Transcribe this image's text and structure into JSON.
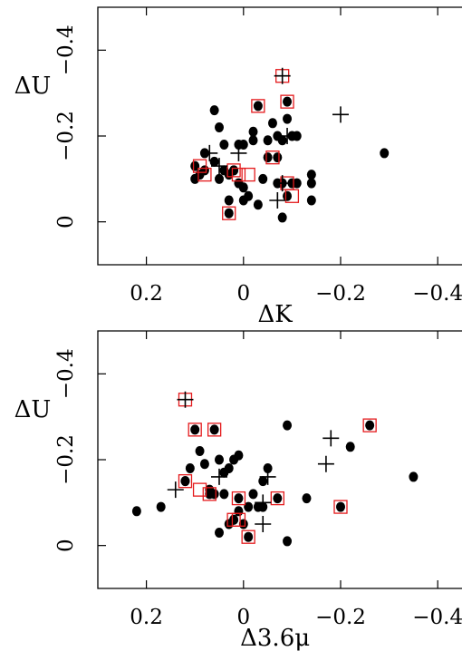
{
  "colors": {
    "point": "#000000",
    "highlight": "#e41a1c",
    "axis": "#000000"
  },
  "chart_data": [
    {
      "type": "scatter",
      "xlabel": "ΔK",
      "ylabel": "ΔU",
      "xlim": [
        0.3,
        -0.45
      ],
      "ylim": [
        0.1,
        -0.5
      ],
      "xticks": [
        0.2,
        0,
        -0.2,
        -0.4
      ],
      "xtick_labels": [
        "0.2",
        "0",
        "−0.2",
        "−0.4"
      ],
      "yticks": [
        0,
        -0.2,
        -0.4
      ],
      "ytick_labels": [
        "0",
        "−0.2",
        "−0.4"
      ],
      "series": [
        {
          "marker": "dot",
          "points": [
            [
              -0.29,
              -0.16
            ],
            [
              -0.14,
              -0.11
            ],
            [
              -0.14,
              -0.09
            ],
            [
              -0.14,
              -0.05
            ],
            [
              -0.11,
              -0.09
            ],
            [
              -0.11,
              -0.2
            ],
            [
              -0.1,
              -0.2
            ],
            [
              -0.1,
              -0.09
            ],
            [
              -0.09,
              -0.24
            ],
            [
              -0.09,
              -0.06
            ],
            [
              -0.08,
              -0.19
            ],
            [
              -0.08,
              -0.09
            ],
            [
              -0.08,
              -0.01
            ],
            [
              -0.07,
              -0.15
            ],
            [
              -0.07,
              -0.09
            ],
            [
              -0.07,
              -0.2
            ],
            [
              -0.06,
              -0.23
            ],
            [
              -0.05,
              -0.19
            ],
            [
              -0.05,
              -0.15
            ],
            [
              -0.04,
              -0.1
            ],
            [
              -0.03,
              -0.04
            ],
            [
              -0.02,
              -0.21
            ],
            [
              -0.02,
              -0.19
            ],
            [
              -0.01,
              -0.06
            ],
            [
              0,
              -0.08
            ],
            [
              0,
              -0.05
            ],
            [
              0,
              -0.18
            ],
            [
              0.01,
              -0.18
            ],
            [
              0.01,
              -0.09
            ],
            [
              0.02,
              -0.12
            ],
            [
              0.02,
              -0.12
            ],
            [
              0.03,
              -0.11
            ],
            [
              0.03,
              -0.05
            ],
            [
              0.04,
              -0.18
            ],
            [
              0.05,
              -0.22
            ],
            [
              0.05,
              -0.1
            ],
            [
              0.06,
              -0.14
            ],
            [
              0.08,
              -0.16
            ],
            [
              0.08,
              -0.12
            ],
            [
              0.09,
              -0.11
            ],
            [
              0.03,
              -0.02
            ],
            [
              0.06,
              -0.26
            ],
            [
              0.1,
              -0.13
            ],
            [
              0.1,
              -0.1
            ],
            [
              -0.03,
              -0.27
            ],
            [
              -0.09,
              -0.28
            ],
            [
              0.04,
              -0.12
            ]
          ]
        },
        {
          "marker": "boxed-dot",
          "points": [
            [
              -0.09,
              -0.28
            ],
            [
              -0.03,
              -0.27
            ],
            [
              -0.06,
              -0.15
            ],
            [
              -0.09,
              -0.09
            ],
            [
              -0.1,
              -0.06
            ],
            [
              0.01,
              -0.11
            ],
            [
              -0.01,
              -0.11
            ],
            [
              0.02,
              -0.12
            ],
            [
              0.09,
              -0.13
            ],
            [
              0.08,
              -0.11
            ],
            [
              0.03,
              -0.02
            ]
          ]
        },
        {
          "marker": "boxed-plus",
          "points": [
            [
              -0.08,
              -0.34
            ]
          ]
        },
        {
          "marker": "plus",
          "points": [
            [
              -0.2,
              -0.25
            ],
            [
              -0.09,
              -0.2
            ],
            [
              -0.08,
              -0.09
            ],
            [
              -0.07,
              -0.05
            ],
            [
              0.07,
              -0.16
            ],
            [
              0.05,
              -0.13
            ],
            [
              0.01,
              -0.16
            ]
          ]
        }
      ]
    },
    {
      "type": "scatter",
      "xlabel": "Δ3.6μ",
      "ylabel": "ΔU",
      "xlim": [
        0.3,
        -0.45
      ],
      "ylim": [
        0.1,
        -0.5
      ],
      "xticks": [
        0.2,
        0,
        -0.2,
        -0.4
      ],
      "xtick_labels": [
        "0.2",
        "0",
        "−0.2",
        "−0.4"
      ],
      "yticks": [
        0,
        -0.2,
        -0.4
      ],
      "ytick_labels": [
        "0",
        "−0.2",
        "−0.4"
      ],
      "series": [
        {
          "marker": "dot",
          "points": [
            [
              -0.35,
              -0.16
            ],
            [
              -0.22,
              -0.23
            ],
            [
              -0.13,
              -0.11
            ],
            [
              -0.09,
              -0.01
            ],
            [
              -0.09,
              -0.28
            ],
            [
              -0.05,
              -0.18
            ],
            [
              -0.04,
              -0.15
            ],
            [
              -0.04,
              -0.09
            ],
            [
              -0.03,
              -0.09
            ],
            [
              -0.02,
              -0.12
            ],
            [
              -0.01,
              -0.09
            ],
            [
              0,
              -0.05
            ],
            [
              0.01,
              -0.21
            ],
            [
              0.01,
              -0.08
            ],
            [
              0.02,
              -0.2
            ],
            [
              0.02,
              -0.06
            ],
            [
              0.03,
              -0.18
            ],
            [
              0.03,
              -0.05
            ],
            [
              0.04,
              -0.12
            ],
            [
              0.04,
              -0.17
            ],
            [
              0.05,
              -0.2
            ],
            [
              0.05,
              -0.03
            ],
            [
              0.06,
              -0.12
            ],
            [
              0.07,
              -0.13
            ],
            [
              0.08,
              -0.19
            ],
            [
              0.09,
              -0.22
            ],
            [
              0.11,
              -0.18
            ],
            [
              0.12,
              -0.15
            ],
            [
              0.17,
              -0.09
            ],
            [
              0.22,
              -0.08
            ],
            [
              0.1,
              -0.27
            ],
            [
              0.02,
              -0.06
            ],
            [
              0.01,
              -0.11
            ],
            [
              -0.01,
              -0.02
            ],
            [
              -0.07,
              -0.11
            ],
            [
              -0.2,
              -0.09
            ],
            [
              -0.26,
              -0.28
            ],
            [
              0.06,
              -0.27
            ],
            [
              0.12,
              -0.15
            ],
            [
              0.07,
              -0.12
            ]
          ]
        },
        {
          "marker": "boxed-dot",
          "points": [
            [
              -0.26,
              -0.28
            ],
            [
              -0.2,
              -0.09
            ],
            [
              0.06,
              -0.27
            ],
            [
              0.12,
              -0.15
            ],
            [
              0.09,
              -0.13
            ],
            [
              0.07,
              -0.12
            ],
            [
              0.01,
              -0.11
            ],
            [
              0.01,
              -0.06
            ],
            [
              -0.01,
              -0.02
            ],
            [
              -0.07,
              -0.11
            ],
            [
              0.1,
              -0.27
            ],
            [
              0.02,
              -0.06
            ]
          ]
        },
        {
          "marker": "boxed-plus",
          "points": [
            [
              0.12,
              -0.34
            ]
          ]
        },
        {
          "marker": "plus",
          "points": [
            [
              -0.18,
              -0.25
            ],
            [
              -0.17,
              -0.19
            ],
            [
              -0.04,
              -0.1
            ],
            [
              -0.04,
              -0.05
            ],
            [
              0.05,
              -0.16
            ],
            [
              0.14,
              -0.13
            ],
            [
              -0.05,
              -0.16
            ]
          ]
        }
      ]
    }
  ]
}
